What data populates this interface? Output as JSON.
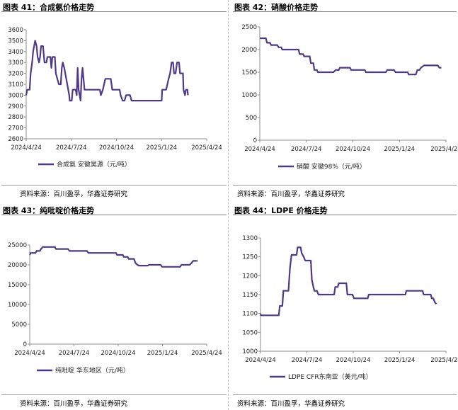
{
  "line_color": "#4f3a87",
  "source_text": "资料来源：百川盈孚，华鑫证券研究",
  "panels": [
    {
      "id": "p41",
      "title": "图表 41：合成氨价格走势",
      "legend": "合成氨 安徽昊源（元/吨）"
    },
    {
      "id": "p42",
      "title": "图表 42：硝酸价格走势",
      "legend": "硝酸 安徽98%（元/吨）"
    },
    {
      "id": "p43",
      "title": "图表 43：纯吡啶价格走势",
      "legend": "纯吡啶 华东地区（元/吨）"
    },
    {
      "id": "p44",
      "title": "图表 44：LDPE 价格走势",
      "legend": "LDPE CFR东南亚（美元/吨）"
    }
  ],
  "chart_data": [
    {
      "type": "line",
      "title": "图表 41：合成氨价格走势",
      "xticks": [
        "2024/4/24",
        "2024/7/24",
        "2024/10/24",
        "2025/1/24",
        "2025/4/24"
      ],
      "x_range": [
        "2024-04-24",
        "2025-04-24"
      ],
      "ylim": [
        2600,
        3600
      ],
      "yticks": [
        2600,
        2700,
        2800,
        2900,
        3000,
        3100,
        3200,
        3300,
        3400,
        3500,
        3600
      ],
      "series": [
        {
          "name": "合成氨 安徽昊源（元/吨）",
          "points": [
            [
              "2024-04-24",
              3000
            ],
            [
              "2024-04-26",
              3050
            ],
            [
              "2024-05-01",
              3050
            ],
            [
              "2024-05-03",
              3200
            ],
            [
              "2024-05-06",
              3300
            ],
            [
              "2024-05-08",
              3400
            ],
            [
              "2024-05-10",
              3450
            ],
            [
              "2024-05-12",
              3500
            ],
            [
              "2024-05-15",
              3450
            ],
            [
              "2024-05-17",
              3350
            ],
            [
              "2024-05-20",
              3300
            ],
            [
              "2024-05-22",
              3350
            ],
            [
              "2024-05-24",
              3450
            ],
            [
              "2024-05-28",
              3450
            ],
            [
              "2024-05-31",
              3300
            ],
            [
              "2024-06-04",
              3300
            ],
            [
              "2024-06-06",
              3350
            ],
            [
              "2024-06-12",
              3350
            ],
            [
              "2024-06-14",
              3250
            ],
            [
              "2024-06-16",
              3350
            ],
            [
              "2024-06-21",
              3350
            ],
            [
              "2024-06-23",
              3200
            ],
            [
              "2024-06-26",
              3150
            ],
            [
              "2024-06-29",
              3100
            ],
            [
              "2024-07-03",
              3100
            ],
            [
              "2024-07-05",
              3250
            ],
            [
              "2024-07-07",
              3300
            ],
            [
              "2024-07-10",
              3250
            ],
            [
              "2024-07-14",
              3150
            ],
            [
              "2024-07-16",
              3100
            ],
            [
              "2024-07-18",
              3050
            ],
            [
              "2024-07-20",
              3000
            ],
            [
              "2024-07-21",
              2950
            ],
            [
              "2024-07-25",
              2950
            ],
            [
              "2024-07-27",
              3050
            ],
            [
              "2024-08-02",
              3050
            ],
            [
              "2024-08-04",
              3000
            ],
            [
              "2024-08-06",
              3250
            ],
            [
              "2024-08-08",
              3050
            ],
            [
              "2024-08-10",
              3000
            ],
            [
              "2024-08-12",
              2950
            ],
            [
              "2024-08-14",
              3150
            ],
            [
              "2024-08-16",
              3250
            ],
            [
              "2024-08-18",
              3150
            ],
            [
              "2024-08-20",
              3050
            ],
            [
              "2024-08-24",
              3050
            ],
            [
              "2024-09-20",
              3050
            ],
            [
              "2024-09-22",
              3000
            ],
            [
              "2024-09-26",
              3050
            ],
            [
              "2024-10-01",
              3150
            ],
            [
              "2024-10-12",
              3150
            ],
            [
              "2024-10-15",
              3050
            ],
            [
              "2024-10-30",
              3050
            ],
            [
              "2024-11-01",
              3000
            ],
            [
              "2024-11-05",
              2950
            ],
            [
              "2024-11-09",
              2950
            ],
            [
              "2024-11-12",
              3000
            ],
            [
              "2024-11-20",
              3000
            ],
            [
              "2024-11-23",
              2950
            ],
            [
              "2025-01-12",
              2950
            ],
            [
              "2025-01-15",
              2950
            ],
            [
              "2025-01-23",
              2950
            ],
            [
              "2025-01-24",
              3050
            ],
            [
              "2025-02-01",
              3050
            ],
            [
              "2025-02-06",
              3150
            ],
            [
              "2025-02-09",
              3200
            ],
            [
              "2025-02-12",
              3300
            ],
            [
              "2025-02-15",
              3300
            ],
            [
              "2025-02-17",
              3200
            ],
            [
              "2025-02-20",
              3200
            ],
            [
              "2025-02-23",
              3300
            ],
            [
              "2025-02-27",
              3300
            ],
            [
              "2025-03-01",
              3200
            ],
            [
              "2025-03-07",
              3200
            ],
            [
              "2025-03-08",
              3050
            ],
            [
              "2025-03-11",
              3000
            ],
            [
              "2025-03-13",
              3050
            ],
            [
              "2025-03-16",
              3050
            ],
            [
              "2025-03-17",
              3000
            ]
          ]
        }
      ]
    },
    {
      "type": "line",
      "title": "图表 42：硝酸价格走势",
      "xticks": [
        "2024/4/24",
        "2024/7/24",
        "2024/10/24",
        "2025/1/24",
        "2025/4/24"
      ],
      "x_range": [
        "2024-04-24",
        "2025-04-24"
      ],
      "ylim": [
        0,
        2500
      ],
      "yticks": [
        0,
        500,
        1000,
        1500,
        2000,
        2500
      ],
      "series": [
        {
          "name": "硝酸 安徽98%（元/吨）",
          "points": [
            [
              "2024-04-24",
              2250
            ],
            [
              "2024-05-06",
              2250
            ],
            [
              "2024-05-08",
              2150
            ],
            [
              "2024-05-14",
              2150
            ],
            [
              "2024-05-16",
              2100
            ],
            [
              "2024-05-28",
              2100
            ],
            [
              "2024-05-31",
              2050
            ],
            [
              "2024-06-05",
              2050
            ],
            [
              "2024-06-07",
              2000
            ],
            [
              "2024-07-09",
              2000
            ],
            [
              "2024-07-11",
              1900
            ],
            [
              "2024-07-18",
              1900
            ],
            [
              "2024-07-20",
              1850
            ],
            [
              "2024-07-31",
              1850
            ],
            [
              "2024-08-02",
              1700
            ],
            [
              "2024-08-07",
              1700
            ],
            [
              "2024-08-09",
              1550
            ],
            [
              "2024-08-14",
              1550
            ],
            [
              "2024-08-16",
              1500
            ],
            [
              "2024-09-15",
              1500
            ],
            [
              "2024-09-20",
              1550
            ],
            [
              "2024-09-26",
              1550
            ],
            [
              "2024-09-28",
              1600
            ],
            [
              "2024-10-18",
              1600
            ],
            [
              "2024-10-20",
              1550
            ],
            [
              "2024-11-16",
              1550
            ],
            [
              "2024-11-18",
              1500
            ],
            [
              "2024-12-27",
              1500
            ],
            [
              "2024-12-30",
              1550
            ],
            [
              "2025-01-12",
              1550
            ],
            [
              "2025-01-15",
              1500
            ],
            [
              "2025-02-08",
              1500
            ],
            [
              "2025-02-10",
              1450
            ],
            [
              "2025-02-24",
              1450
            ],
            [
              "2025-02-27",
              1550
            ],
            [
              "2025-03-03",
              1550
            ],
            [
              "2025-03-06",
              1600
            ],
            [
              "2025-03-12",
              1650
            ],
            [
              "2025-04-08",
              1650
            ],
            [
              "2025-04-11",
              1600
            ],
            [
              "2025-04-15",
              1600
            ]
          ]
        }
      ]
    },
    {
      "type": "line",
      "title": "图表 43：纯吡啶价格走势",
      "xticks": [
        "2024/4/24",
        "2024/7/24",
        "2024/10/24",
        "2025/1/24",
        "2025/4/24"
      ],
      "x_range": [
        "2024-04-24",
        "2025-04-24"
      ],
      "ylim": [
        0,
        25000
      ],
      "yticks": [
        0,
        5000,
        10000,
        15000,
        20000,
        25000
      ],
      "series": [
        {
          "name": "纯吡啶 华东地区（元/吨）",
          "points": [
            [
              "2024-04-24",
              22500
            ],
            [
              "2024-04-26",
              23000
            ],
            [
              "2024-05-06",
              23000
            ],
            [
              "2024-05-08",
              23500
            ],
            [
              "2024-05-15",
              23500
            ],
            [
              "2024-05-17",
              24000
            ],
            [
              "2024-05-21",
              24500
            ],
            [
              "2024-06-15",
              24500
            ],
            [
              "2024-06-17",
              24000
            ],
            [
              "2024-07-12",
              24000
            ],
            [
              "2024-07-15",
              23500
            ],
            [
              "2024-08-20",
              23500
            ],
            [
              "2024-08-23",
              23000
            ],
            [
              "2024-10-19",
              23000
            ],
            [
              "2024-10-21",
              22500
            ],
            [
              "2024-11-02",
              22500
            ],
            [
              "2024-11-04",
              22000
            ],
            [
              "2024-11-12",
              22000
            ],
            [
              "2024-11-14",
              21500
            ],
            [
              "2024-11-25",
              21500
            ],
            [
              "2024-11-28",
              20500
            ],
            [
              "2024-12-02",
              20000
            ],
            [
              "2024-12-05",
              19800
            ],
            [
              "2024-12-23",
              19800
            ],
            [
              "2024-12-26",
              20000
            ],
            [
              "2025-01-19",
              20000
            ],
            [
              "2025-01-22",
              19500
            ],
            [
              "2025-02-28",
              19500
            ],
            [
              "2025-03-03",
              20000
            ],
            [
              "2025-03-20",
              20000
            ],
            [
              "2025-03-24",
              20500
            ],
            [
              "2025-03-27",
              21000
            ],
            [
              "2025-04-05",
              21000
            ]
          ]
        }
      ]
    },
    {
      "type": "line",
      "title": "图表 44：LDPE 价格走势",
      "xticks": [
        "2024/4/24",
        "2024/7/24",
        "2024/10/24",
        "2025/1/24",
        "2025/4/24"
      ],
      "x_range": [
        "2024-04-24",
        "2025-04-24"
      ],
      "ylim": [
        1000,
        1300
      ],
      "yticks": [
        1000,
        1050,
        1100,
        1150,
        1200,
        1250,
        1300
      ],
      "series": [
        {
          "name": "LDPE CFR东南亚（美元/吨）",
          "points": [
            [
              "2024-04-24",
              1100
            ],
            [
              "2024-04-25",
              1095
            ],
            [
              "2024-05-30",
              1095
            ],
            [
              "2024-06-01",
              1120
            ],
            [
              "2024-06-06",
              1120
            ],
            [
              "2024-06-08",
              1160
            ],
            [
              "2024-06-18",
              1160
            ],
            [
              "2024-06-21",
              1220
            ],
            [
              "2024-06-24",
              1255
            ],
            [
              "2024-07-04",
              1255
            ],
            [
              "2024-07-06",
              1275
            ],
            [
              "2024-07-12",
              1275
            ],
            [
              "2024-07-14",
              1260
            ],
            [
              "2024-07-18",
              1250
            ],
            [
              "2024-07-21",
              1240
            ],
            [
              "2024-08-01",
              1240
            ],
            [
              "2024-08-03",
              1190
            ],
            [
              "2024-08-06",
              1170
            ],
            [
              "2024-08-08",
              1160
            ],
            [
              "2024-08-13",
              1160
            ],
            [
              "2024-08-16",
              1150
            ],
            [
              "2024-09-16",
              1150
            ],
            [
              "2024-09-18",
              1170
            ],
            [
              "2024-09-23",
              1170
            ],
            [
              "2024-09-25",
              1180
            ],
            [
              "2024-10-10",
              1180
            ],
            [
              "2024-10-12",
              1150
            ],
            [
              "2024-10-22",
              1150
            ],
            [
              "2024-10-25",
              1140
            ],
            [
              "2024-11-21",
              1140
            ],
            [
              "2024-11-23",
              1150
            ],
            [
              "2025-02-03",
              1150
            ],
            [
              "2025-02-05",
              1160
            ],
            [
              "2025-03-09",
              1160
            ],
            [
              "2025-03-11",
              1150
            ],
            [
              "2025-03-25",
              1150
            ],
            [
              "2025-03-27",
              1140
            ],
            [
              "2025-03-30",
              1140
            ],
            [
              "2025-04-02",
              1130
            ],
            [
              "2025-04-05",
              1125
            ]
          ]
        }
      ]
    }
  ]
}
